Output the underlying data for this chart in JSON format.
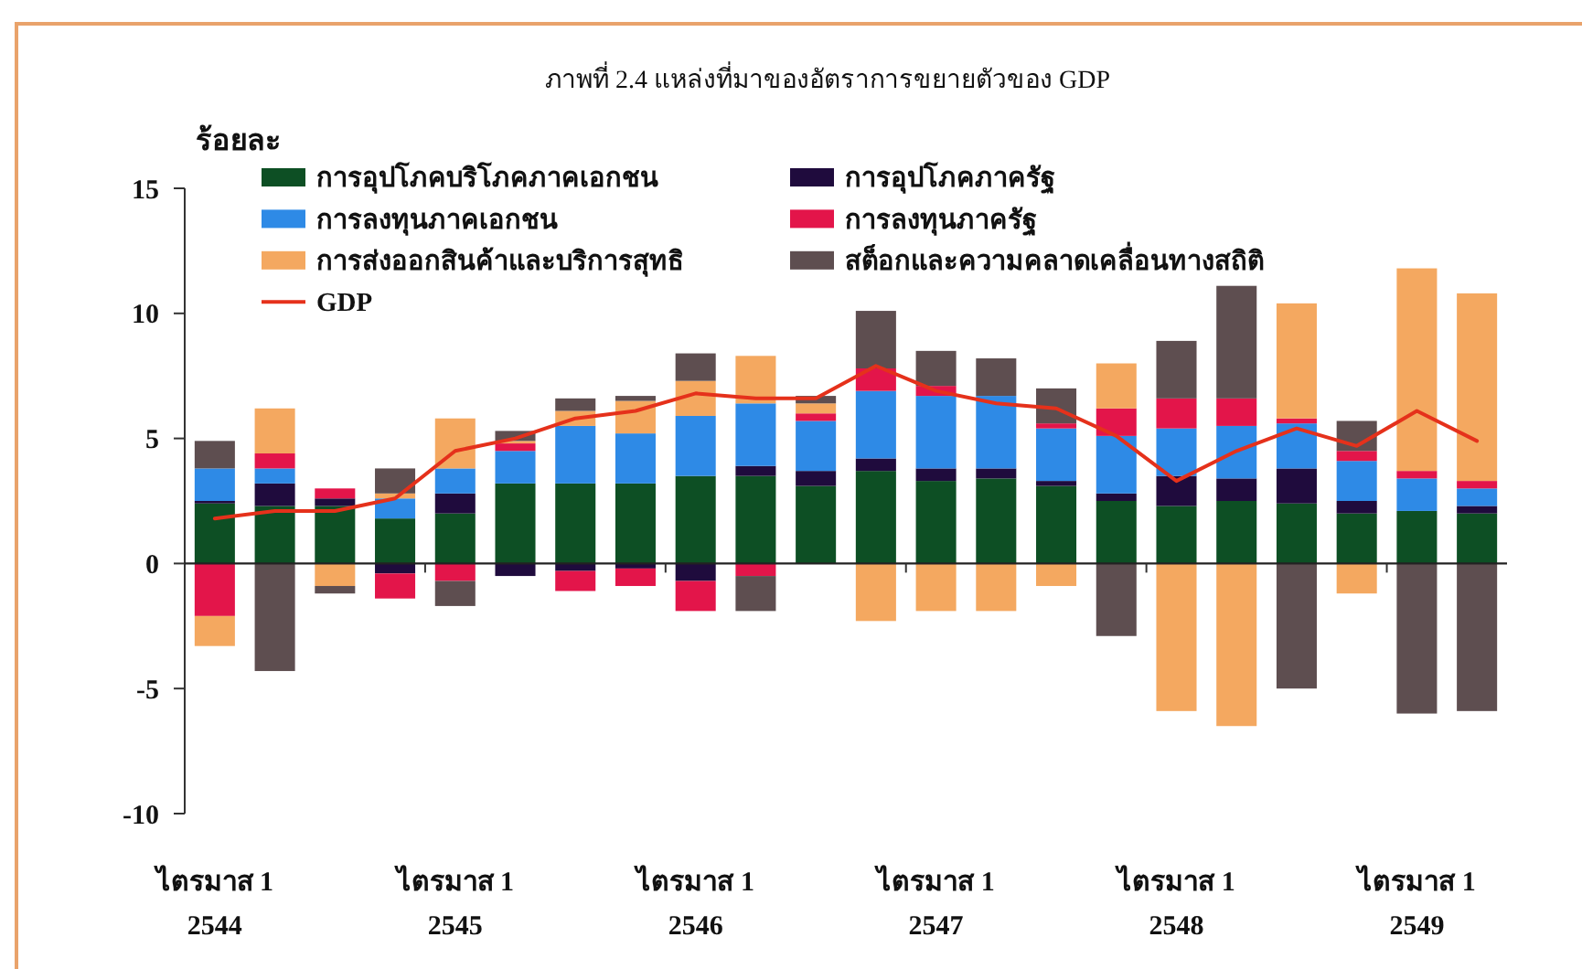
{
  "chart_data": {
    "type": "bar",
    "stacked": true,
    "title": "ภาพที่ 2.4 แหล่งที่มาของอัตราการขยายตัวของ GDP",
    "ylabel": "ร้อยละ",
    "categories": [
      "ไตรมาส 1 2544",
      null,
      null,
      null,
      "ไตรมาส 1 2545",
      null,
      null,
      null,
      "ไตรมาส 1 2546",
      null,
      null,
      null,
      "ไตรมาส 1 2547",
      null,
      null,
      null,
      "ไตรมาส 1 2548",
      null,
      null,
      null,
      "ไตรมาส 1 2549",
      null
    ],
    "ylim": [
      -10,
      15
    ],
    "yticks": [
      -10,
      -5,
      0,
      5,
      10,
      15
    ],
    "legend": "top",
    "series": [
      {
        "name": "การอุปโภคบริโภคภาคเอกชน",
        "color": "#0d4f24",
        "values": [
          2.4,
          2.3,
          2.3,
          1.8,
          2.0,
          3.2,
          3.2,
          3.2,
          3.5,
          3.5,
          3.1,
          3.7,
          3.3,
          3.4,
          3.1,
          2.5,
          2.3,
          2.5,
          2.4,
          2.0,
          2.1,
          2.0
        ]
      },
      {
        "name": "การอุปโภคภาครัฐ",
        "color": "#1f0b3d",
        "values": [
          0.1,
          0.9,
          0.3,
          -0.4,
          0.8,
          -0.5,
          -0.3,
          -0.2,
          -0.7,
          0.4,
          0.6,
          0.5,
          0.5,
          0.4,
          0.2,
          0.3,
          1.2,
          0.9,
          1.4,
          0.5,
          null,
          0.3
        ]
      },
      {
        "name": "การลงทุนภาคเอกชน",
        "color": "#2e8ae6",
        "values": [
          1.3,
          0.6,
          null,
          0.8,
          1.0,
          1.3,
          2.3,
          2.0,
          2.4,
          2.5,
          2.0,
          2.7,
          2.9,
          2.9,
          2.1,
          2.3,
          1.9,
          2.1,
          1.8,
          1.6,
          1.3,
          0.7
        ]
      },
      {
        "name": "การลงทุนภาครัฐ",
        "color": "#e3154a",
        "values": [
          -2.1,
          0.6,
          0.4,
          -1.0,
          -0.7,
          0.3,
          -0.8,
          -0.7,
          -1.2,
          -0.5,
          0.3,
          0.9,
          0.4,
          null,
          0.2,
          1.1,
          1.2,
          1.1,
          0.2,
          0.4,
          0.3,
          0.3
        ]
      },
      {
        "name": "การส่งออกสินค้าและบริการสุทธิ",
        "color": "#f4a860",
        "values": [
          -1.2,
          1.8,
          -0.9,
          0.2,
          2.0,
          0.1,
          0.6,
          1.3,
          1.4,
          1.9,
          0.4,
          -2.3,
          -1.9,
          -1.9,
          -0.9,
          1.8,
          -5.9,
          -6.5,
          4.6,
          -1.2,
          8.1,
          7.5
        ]
      },
      {
        "name": "สต็อกและความคลาดเคลื่อนทางสถิติ",
        "color": "#5e4e50",
        "values": [
          1.1,
          -4.3,
          -0.3,
          1.0,
          -1.0,
          0.4,
          0.5,
          0.2,
          1.1,
          -1.4,
          0.3,
          2.3,
          1.4,
          1.5,
          1.4,
          -2.9,
          2.3,
          4.5,
          -5.0,
          1.2,
          -6.0,
          -5.9
        ]
      },
      {
        "name": "GDP",
        "type": "line",
        "color": "#e5311b",
        "values": [
          1.8,
          2.1,
          2.1,
          2.6,
          4.5,
          5.0,
          5.8,
          6.1,
          6.8,
          6.6,
          6.6,
          7.9,
          6.9,
          6.4,
          6.2,
          5.1,
          3.3,
          4.5,
          5.4,
          4.7,
          6.1,
          4.9
        ]
      }
    ]
  }
}
